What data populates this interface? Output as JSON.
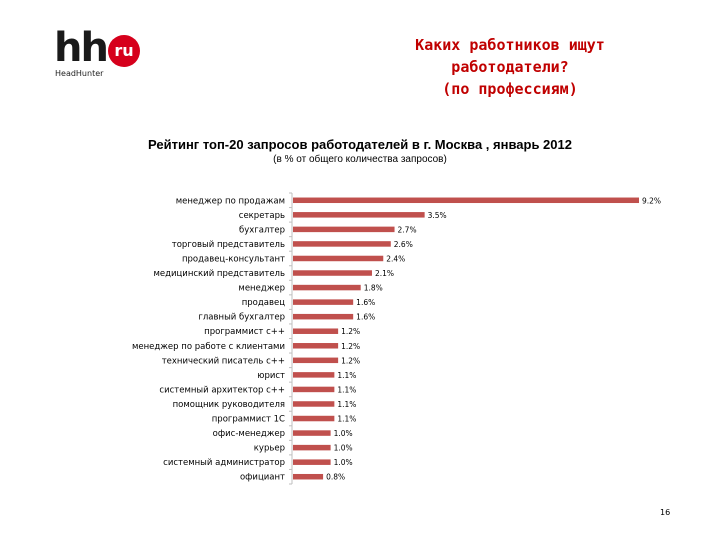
{
  "logo": {
    "main": "hh",
    "badge": "ru",
    "subtitle": "HeadHunter"
  },
  "slide_title": "Каких работников ищут\nработодатели?\n(по профессиям)",
  "page_number": "16",
  "colors": {
    "bar": "#c0504d",
    "title": "#c00000",
    "axis": "#bfbfbf"
  },
  "chart_data": {
    "type": "bar",
    "orientation": "horizontal",
    "title": "Рейтинг топ-20 запросов работодателей в г. Москва , январь 2012",
    "subtitle": "(в % от общего количества запросов)",
    "unit": "%",
    "categories": [
      "менеджер по продажам",
      "секретарь",
      "бухгалтер",
      "торговый представитель",
      "продавец-консультант",
      "медицинский представитель",
      "менеджер",
      "продавец",
      "главный бухгалтер",
      "программист с++",
      "менеджер по работе с клиентами",
      "технический писатель с++",
      "юрист",
      "системный архитектор с++",
      "помощник руководителя",
      "программист 1С",
      "офис-менеджер",
      "курьер",
      "системный администратор",
      "официант"
    ],
    "values": [
      9.2,
      3.5,
      2.7,
      2.6,
      2.4,
      2.1,
      1.8,
      1.6,
      1.6,
      1.2,
      1.2,
      1.2,
      1.1,
      1.1,
      1.1,
      1.1,
      1.0,
      1.0,
      1.0,
      0.8
    ],
    "labels": [
      "9.2%",
      "3.5%",
      "2.7%",
      "2.6%",
      "2.4%",
      "2.1%",
      "1.8%",
      "1.6%",
      "1.6%",
      "1.2%",
      "1.2%",
      "1.2%",
      "1.1%",
      "1.1%",
      "1.1%",
      "1.1%",
      "1.0%",
      "1.0%",
      "1.0%",
      "0.8%"
    ],
    "xlim": [
      0,
      9.2
    ],
    "grid": false,
    "legend": "none"
  }
}
